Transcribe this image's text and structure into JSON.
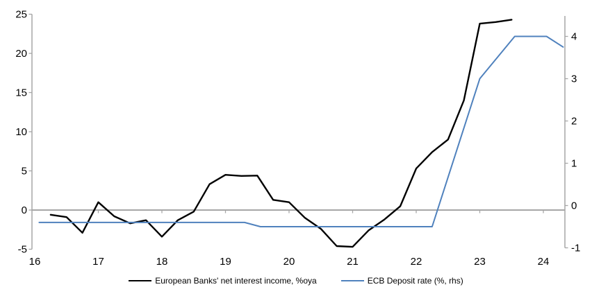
{
  "chart_data": {
    "type": "line",
    "title": "",
    "x_axis": {
      "tick_labels": [
        "16",
        "17",
        "18",
        "19",
        "20",
        "21",
        "22",
        "23",
        "24"
      ],
      "range": [
        16,
        24.34
      ]
    },
    "left_axis": {
      "tick_labels": [
        "25",
        "20",
        "15",
        "10",
        "5",
        "0",
        "-5"
      ],
      "tick_values": [
        25,
        20,
        15,
        10,
        5,
        0,
        -5
      ],
      "range": [
        -5,
        25
      ]
    },
    "right_axis": {
      "tick_labels": [
        "4",
        "3",
        "2",
        "1",
        "0",
        "-1"
      ],
      "tick_values": [
        4,
        3,
        2,
        1,
        0,
        -1
      ],
      "range": [
        -1,
        4.48
      ]
    },
    "gridlines": "zero-line-only",
    "legend_position": "bottom-center",
    "colors": {
      "nii_line": "#000000",
      "ecb_line": "#4f81bd",
      "gridline": "#a6a6a6",
      "axis": "#a6a6a6",
      "text": "#000000"
    },
    "series": [
      {
        "id": "nii",
        "name": "European Banks' net interest income, %oya",
        "axis": "left",
        "color": "#000000",
        "points": [
          [
            16.25,
            -0.6
          ],
          [
            16.5,
            -0.9
          ],
          [
            16.75,
            -2.9
          ],
          [
            17.0,
            1.0
          ],
          [
            17.25,
            -0.8
          ],
          [
            17.5,
            -1.7
          ],
          [
            17.75,
            -1.3
          ],
          [
            18.0,
            -3.4
          ],
          [
            18.25,
            -1.3
          ],
          [
            18.5,
            -0.2
          ],
          [
            18.75,
            3.3
          ],
          [
            19.0,
            4.5
          ],
          [
            19.25,
            4.35
          ],
          [
            19.5,
            4.4
          ],
          [
            19.75,
            1.3
          ],
          [
            20.0,
            1.0
          ],
          [
            20.25,
            -1.0
          ],
          [
            20.5,
            -2.4
          ],
          [
            20.75,
            -4.6
          ],
          [
            21.0,
            -4.7
          ],
          [
            21.25,
            -2.6
          ],
          [
            21.5,
            -1.2
          ],
          [
            21.75,
            0.5
          ],
          [
            22.0,
            5.3
          ],
          [
            22.25,
            7.4
          ],
          [
            22.5,
            9.0
          ],
          [
            22.75,
            14.0
          ],
          [
            23.0,
            23.8
          ],
          [
            23.25,
            24.0
          ],
          [
            23.5,
            24.3
          ]
        ]
      },
      {
        "id": "ecb",
        "name": "ECB Deposit rate (%, rhs)",
        "axis": "right",
        "color": "#4f81bd",
        "points": [
          [
            16.07,
            -0.4
          ],
          [
            19.3,
            -0.4
          ],
          [
            19.55,
            -0.5
          ],
          [
            22.25,
            -0.5
          ],
          [
            23.0,
            3.0
          ],
          [
            23.55,
            4.0
          ],
          [
            24.05,
            4.0
          ],
          [
            24.31,
            3.75
          ]
        ]
      }
    ]
  }
}
